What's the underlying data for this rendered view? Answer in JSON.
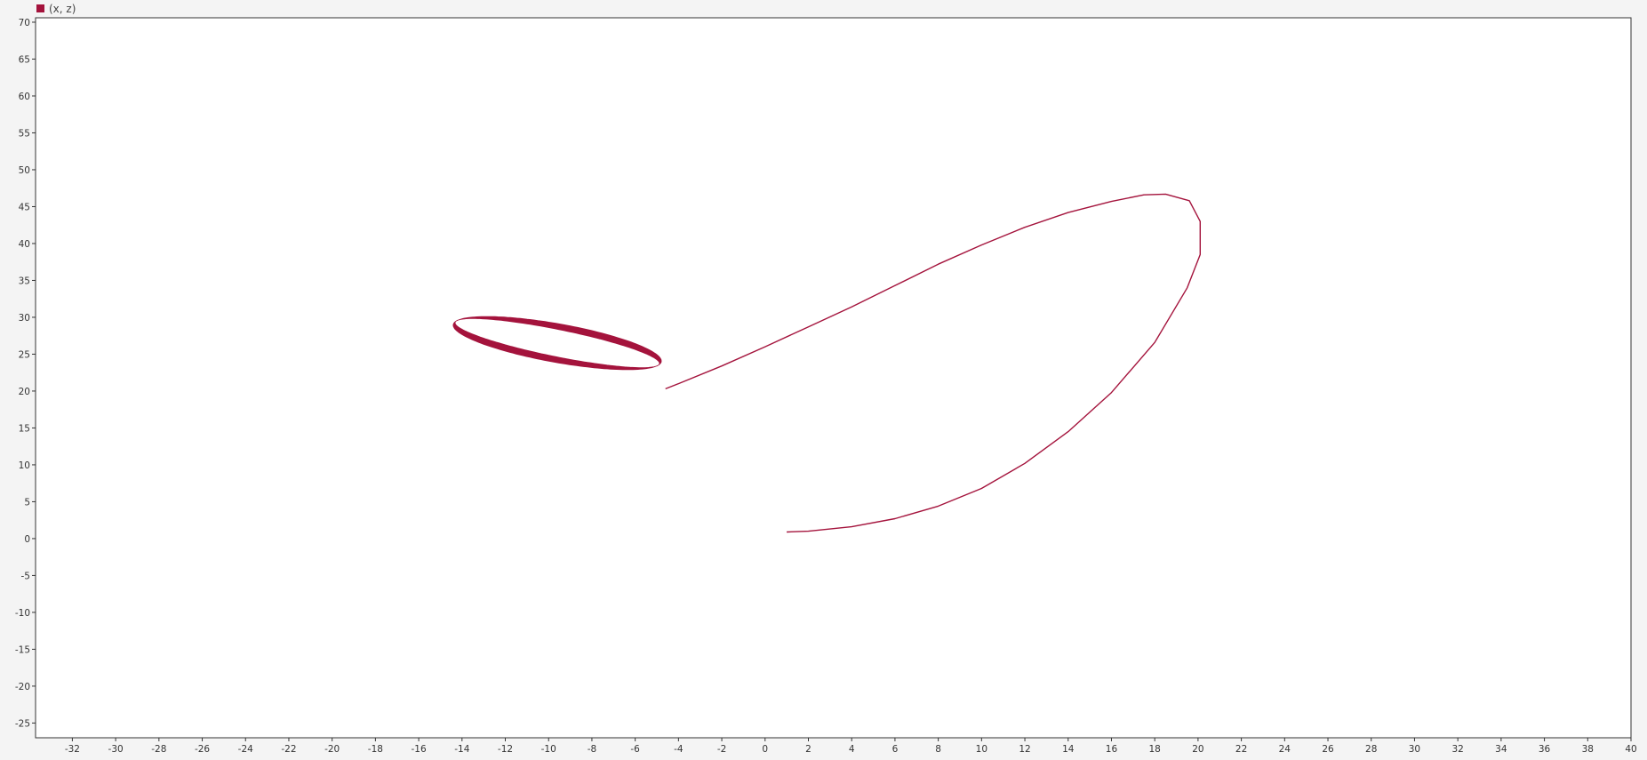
{
  "chart_data": {
    "type": "line",
    "title": "",
    "xlabel": "",
    "ylabel": "",
    "xlim": [
      -33.7,
      40
    ],
    "ylim": [
      -27,
      70.6
    ],
    "x_ticks": [
      -32,
      -30,
      -28,
      -26,
      -24,
      -22,
      -20,
      -18,
      -16,
      -14,
      -12,
      -10,
      -8,
      -6,
      -4,
      -2,
      0,
      2,
      4,
      6,
      8,
      10,
      12,
      14,
      16,
      18,
      20,
      22,
      24,
      26,
      28,
      30,
      32,
      34,
      36,
      38,
      40
    ],
    "y_ticks": [
      -25,
      -20,
      -15,
      -10,
      -5,
      0,
      5,
      10,
      15,
      20,
      25,
      30,
      35,
      40,
      45,
      50,
      55,
      60,
      65,
      70
    ],
    "grid": false,
    "legend": {
      "position": "top-left",
      "entries": [
        "(x, z)"
      ]
    },
    "series": [
      {
        "name": "(x, z)",
        "color": "#a4133c",
        "transient_path": [
          [
            1.0,
            0.9
          ],
          [
            2.0,
            1.0
          ],
          [
            4.0,
            1.6
          ],
          [
            6.0,
            2.7
          ],
          [
            8.0,
            4.4
          ],
          [
            10.0,
            6.8
          ],
          [
            12.0,
            10.2
          ],
          [
            14.0,
            14.5
          ],
          [
            16.0,
            19.8
          ],
          [
            18.0,
            26.6
          ],
          [
            19.5,
            34.0
          ],
          [
            20.1,
            38.5
          ],
          [
            20.1,
            43.0
          ],
          [
            19.6,
            45.8
          ],
          [
            18.5,
            46.7
          ],
          [
            17.5,
            46.6
          ],
          [
            16.0,
            45.7
          ],
          [
            14.0,
            44.2
          ],
          [
            12.0,
            42.2
          ],
          [
            10.0,
            39.8
          ],
          [
            8.0,
            37.2
          ],
          [
            6.0,
            34.3
          ],
          [
            4.0,
            31.4
          ],
          [
            2.0,
            28.7
          ],
          [
            0.0,
            26.0
          ],
          [
            -2.0,
            23.4
          ],
          [
            -4.0,
            21.0
          ],
          [
            -4.6,
            20.3
          ]
        ],
        "limit_cycle": {
          "center": [
            -9.6,
            26.5
          ],
          "semi_major": 5.55,
          "semi_minor_outer": 2.3,
          "semi_minor_inner": 1.6,
          "angle_deg": -33.3
        }
      }
    ]
  }
}
